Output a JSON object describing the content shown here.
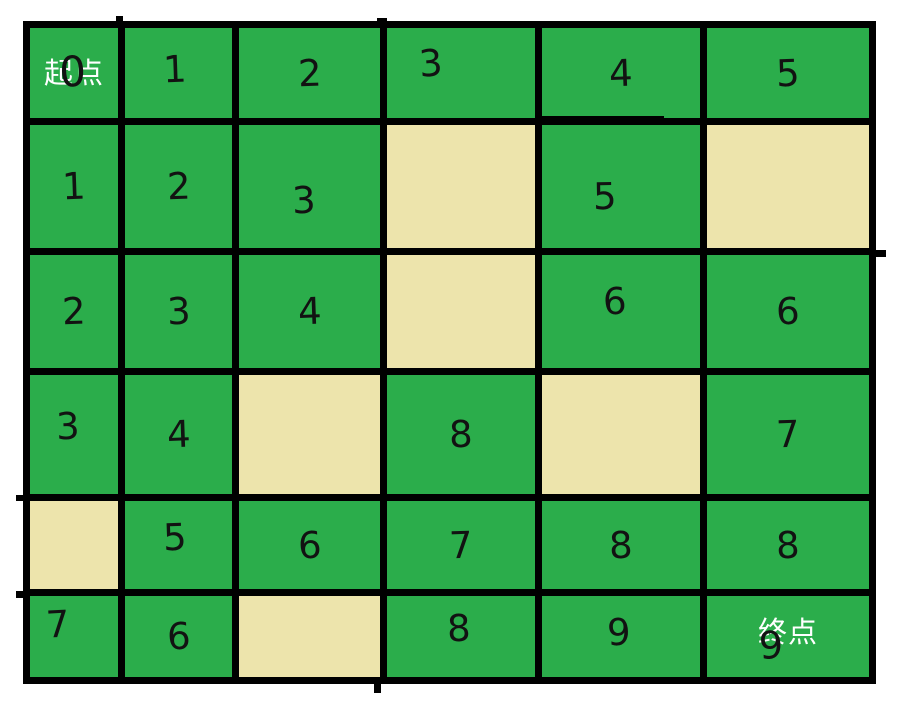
{
  "colors": {
    "cell_green": "#2bad4b",
    "cell_obstacle": "#ede4ac",
    "grid_line": "#000000",
    "digit": "#121212",
    "endpoint_text": "#ffffff",
    "background": "#ffffff"
  },
  "grid": {
    "rows": 6,
    "cols": 6,
    "start": {
      "row": 0,
      "col": 0,
      "label": "起点",
      "value": "0"
    },
    "end": {
      "row": 5,
      "col": 5,
      "label": "终点",
      "value": "9"
    },
    "cells": [
      [
        "0",
        "1",
        "2",
        "3",
        "4",
        "5"
      ],
      [
        "1",
        "2",
        "3",
        null,
        "5",
        null
      ],
      [
        "2",
        "3",
        "4",
        null,
        "6",
        "6"
      ],
      [
        "3",
        "4",
        null,
        "8",
        null,
        "7"
      ],
      [
        null,
        "5",
        "6",
        "7",
        "8",
        "8"
      ],
      [
        "7",
        "6",
        null,
        "8",
        "9",
        "9"
      ]
    ],
    "obstacle_cells": [
      [
        1,
        3
      ],
      [
        1,
        5
      ],
      [
        2,
        3
      ],
      [
        3,
        2
      ],
      [
        3,
        4
      ],
      [
        4,
        0
      ],
      [
        5,
        2
      ]
    ]
  }
}
